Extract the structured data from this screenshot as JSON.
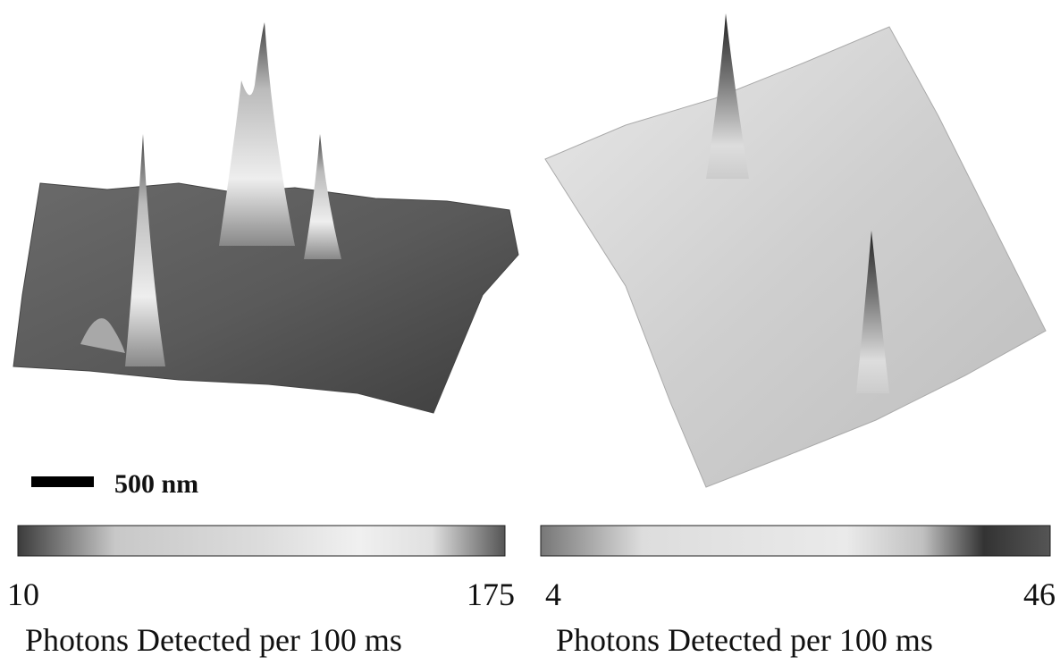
{
  "panels": [
    {
      "scale_bar": "500 nm",
      "colorbar": {
        "min": 10,
        "max": 175,
        "label": "Photons Detected per 100 ms"
      }
    },
    {
      "colorbar": {
        "min": 4,
        "max": 46,
        "label": "Photons Detected per 100 ms"
      }
    }
  ]
}
